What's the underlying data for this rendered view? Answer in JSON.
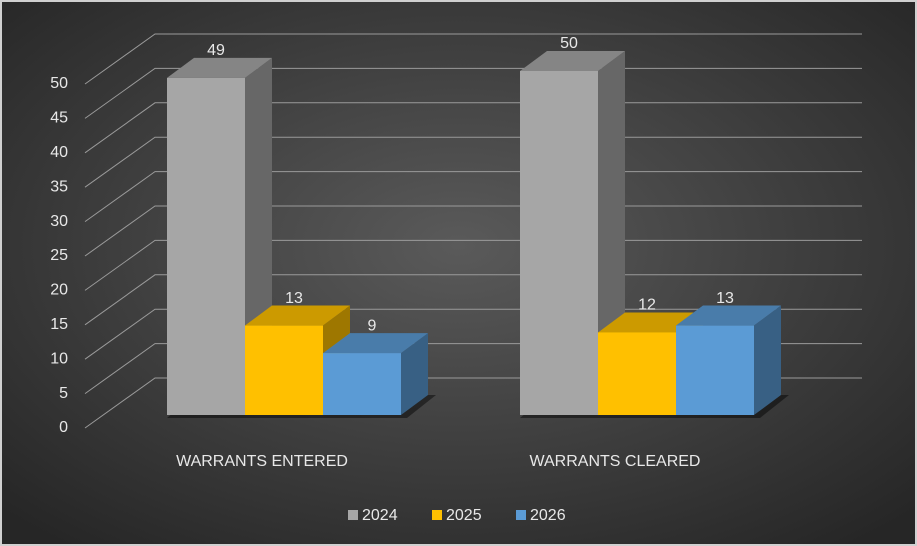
{
  "chart_data": {
    "type": "bar3d",
    "categories": [
      "WARRANTS ENTERED",
      "WARRANTS CLEARED"
    ],
    "series": [
      {
        "name": "2024",
        "color": "#a6a6a6",
        "values": [
          49,
          50
        ]
      },
      {
        "name": "2025",
        "color": "#ffc000",
        "values": [
          13,
          12
        ]
      },
      {
        "name": "2026",
        "color": "#5b9bd5",
        "values": [
          9,
          13
        ]
      }
    ],
    "ylim": [
      0,
      50
    ],
    "yticks": [
      0,
      5,
      10,
      15,
      20,
      25,
      30,
      35,
      40,
      45,
      50
    ],
    "grid": true,
    "legend": "bottom"
  }
}
